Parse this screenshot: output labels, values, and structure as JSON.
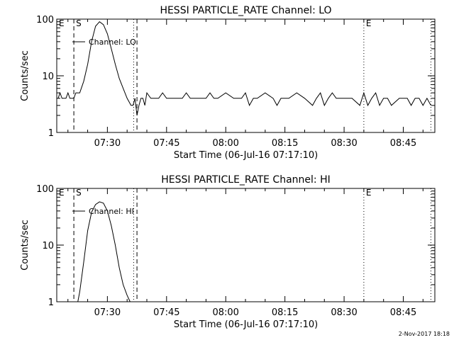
{
  "footer": {
    "timestamp": "2-Nov-2017 18:18"
  },
  "chart_data": [
    {
      "type": "line",
      "title": "HESSI PARTICLE_RATE Channel: LO",
      "xlabel": "Start Time (06-Jul-16 07:17:10)",
      "ylabel": "Counts/sec",
      "yscale": "log",
      "ylim": [
        1,
        100
      ],
      "xlim": [
        "07:17:10",
        "08:53:00"
      ],
      "xticks": [
        "07:30",
        "07:45",
        "08:00",
        "08:15",
        "08:30",
        "08:45"
      ],
      "yticks": [
        "1",
        "10",
        "100"
      ],
      "legend": {
        "label": "Channel: LO",
        "placement": "upper-left"
      },
      "markers": [
        {
          "label": "E",
          "time": "07:17:10",
          "style": "dotted"
        },
        {
          "label": "S",
          "time": "07:21:30",
          "style": "dashed"
        },
        {
          "label": "",
          "time": "07:36:40",
          "style": "dotted"
        },
        {
          "label": "",
          "time": "07:37:30",
          "style": "dashed"
        },
        {
          "label": "E",
          "time": "08:35:00",
          "style": "dotted"
        },
        {
          "label": "",
          "time": "08:52:00",
          "style": "dotted"
        }
      ],
      "series": [
        {
          "x": [
            "07:17:30",
            "07:18:00",
            "07:18:30",
            "07:19:00",
            "07:19:30",
            "07:20:00",
            "07:20:30",
            "07:21:00",
            "07:21:30",
            "07:22:00",
            "07:23:00",
            "07:24:00",
            "07:25:00",
            "07:26:00",
            "07:27:00",
            "07:28:00",
            "07:29:00",
            "07:30:00",
            "07:31:00",
            "07:32:00",
            "07:33:00",
            "07:34:00",
            "07:35:00",
            "07:36:00",
            "07:36:30",
            "07:37:00",
            "07:37:30",
            "07:38:00",
            "07:38:30",
            "07:39:00",
            "07:39:30",
            "07:40:00",
            "07:41:00",
            "07:42:00",
            "07:43:00",
            "07:44:00",
            "07:45:00",
            "07:47:00",
            "07:49:00",
            "07:50:00",
            "07:51:00",
            "07:53:00",
            "07:55:00",
            "07:56:00",
            "07:57:00",
            "07:58:00",
            "08:00:00",
            "08:02:00",
            "08:04:00",
            "08:05:00",
            "08:06:00",
            "08:07:00",
            "08:08:00",
            "08:10:00",
            "08:12:00",
            "08:13:00",
            "08:14:00",
            "08:16:00",
            "08:18:00",
            "08:20:00",
            "08:22:00",
            "08:23:00",
            "08:24:00",
            "08:25:00",
            "08:26:00",
            "08:27:00",
            "08:28:00",
            "08:30:00",
            "08:32:00",
            "08:34:00",
            "08:35:00",
            "08:36:00",
            "08:37:00",
            "08:38:00",
            "08:39:00",
            "08:40:00",
            "08:41:00",
            "08:42:00",
            "08:44:00",
            "08:46:00",
            "08:47:00",
            "08:48:00",
            "08:49:00",
            "08:50:00",
            "08:51:00",
            "08:52:00"
          ],
          "y": [
            4,
            5,
            4,
            4,
            4,
            5,
            4,
            4,
            4,
            5,
            5,
            8,
            16,
            40,
            75,
            90,
            80,
            55,
            30,
            16,
            9,
            6,
            4,
            3,
            3,
            4,
            2,
            3,
            4,
            4,
            3,
            5,
            4,
            4,
            4,
            5,
            4,
            4,
            4,
            5,
            4,
            4,
            4,
            5,
            4,
            4,
            5,
            4,
            4,
            5,
            3,
            4,
            4,
            5,
            4,
            3,
            4,
            4,
            5,
            4,
            3,
            4,
            5,
            3,
            4,
            5,
            4,
            4,
            4,
            3,
            5,
            3,
            4,
            5,
            3,
            4,
            4,
            3,
            4,
            4,
            3,
            4,
            4,
            3,
            4,
            3
          ]
        }
      ]
    },
    {
      "type": "line",
      "title": "HESSI PARTICLE_RATE Channel: HI",
      "xlabel": "Start Time (06-Jul-16 07:17:10)",
      "ylabel": "Counts/sec",
      "yscale": "log",
      "ylim": [
        1,
        100
      ],
      "xlim": [
        "07:17:10",
        "08:53:00"
      ],
      "xticks": [
        "07:30",
        "07:45",
        "08:00",
        "08:15",
        "08:30",
        "08:45"
      ],
      "yticks": [
        "1",
        "10",
        "100"
      ],
      "legend": {
        "label": "Channel: HI",
        "placement": "upper-left"
      },
      "markers": [
        {
          "label": "E",
          "time": "07:17:10",
          "style": "dotted"
        },
        {
          "label": "S",
          "time": "07:21:30",
          "style": "dashed"
        },
        {
          "label": "",
          "time": "07:36:40",
          "style": "dotted"
        },
        {
          "label": "",
          "time": "07:37:30",
          "style": "dashed"
        },
        {
          "label": "E",
          "time": "08:35:00",
          "style": "dotted"
        },
        {
          "label": "",
          "time": "08:52:00",
          "style": "dotted"
        }
      ],
      "series": [
        {
          "x": [
            "07:22:30",
            "07:23:00",
            "07:24:00",
            "07:25:00",
            "07:26:00",
            "07:27:00",
            "07:28:00",
            "07:29:00",
            "07:30:00",
            "07:31:00",
            "07:32:00",
            "07:33:00",
            "07:34:00",
            "07:35:00",
            "07:35:45"
          ],
          "y": [
            1,
            1.5,
            5,
            18,
            38,
            52,
            58,
            55,
            40,
            22,
            10,
            4,
            2,
            1.3,
            1
          ]
        }
      ]
    }
  ]
}
